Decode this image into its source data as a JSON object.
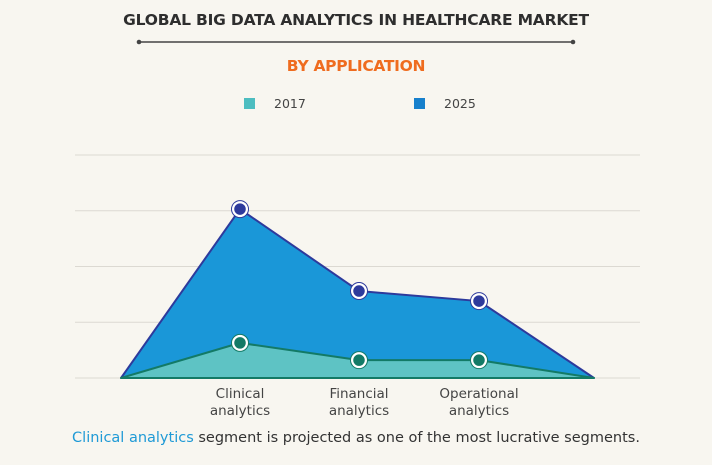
{
  "chart_data": {
    "type": "area",
    "title": "GLOBAL BIG DATA ANALYTICS IN HEALTHCARE MARKET",
    "subtitle": "BY APPLICATION",
    "categories": [
      "Clinical analytics",
      "Financial analytics",
      "Operational analytics"
    ],
    "category_lines": [
      [
        "Clinical",
        "analytics"
      ],
      [
        "Financial",
        "analytics"
      ],
      [
        "Operational",
        "analytics"
      ]
    ],
    "series": [
      {
        "name": "2025",
        "values": [
          3.03,
          1.56,
          1.38
        ],
        "color": "#1a97d8",
        "line_color": "#2d3a9c"
      },
      {
        "name": "2017",
        "values": [
          0.63,
          0.32,
          0.32
        ],
        "color": "#5ec3c4",
        "line_color": "#137a66"
      }
    ],
    "ylim": [
      0,
      4
    ],
    "grid": true,
    "y_tick_labels_shown": false,
    "legend_placement": "top",
    "xlabel": "",
    "ylabel": ""
  },
  "legend": [
    {
      "label": "2017",
      "color": "#4dbdc0"
    },
    {
      "label": "2025",
      "color": "#1780cc"
    }
  ],
  "caption": {
    "highlight": "Clinical analytics",
    "rest": " segment is projected as one of the most lucrative segments."
  },
  "colors": {
    "accent": "#ef6c1f",
    "highlight": "#1f9ad6",
    "background": "#f8f6f0"
  }
}
